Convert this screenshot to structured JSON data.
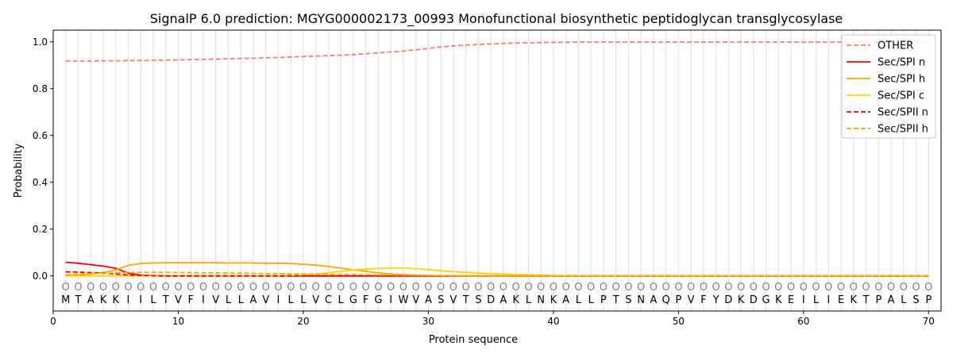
{
  "chart_data": {
    "type": "line",
    "title": "SignalP 6.0 prediction: MGYG000002173_00993 Monofunctional biosynthetic peptidoglycan transglycosylase",
    "xlabel": "Protein sequence",
    "ylabel": "Probability",
    "xlim": [
      0,
      71
    ],
    "ylim": [
      -0.15,
      1.05
    ],
    "xticks": [
      0,
      10,
      20,
      30,
      40,
      50,
      60,
      70
    ],
    "yticks": [
      0.0,
      0.2,
      0.4,
      0.6,
      0.8,
      1.0
    ],
    "ytick_labels": [
      "0.0",
      "0.2",
      "0.4",
      "0.6",
      "0.8",
      "1.0"
    ],
    "legend_position": "top-right",
    "sequence": [
      "M",
      "T",
      "A",
      "K",
      "K",
      "I",
      "I",
      "L",
      "T",
      "V",
      "F",
      "I",
      "V",
      "L",
      "L",
      "A",
      "V",
      "I",
      "L",
      "L",
      "V",
      "C",
      "L",
      "G",
      "F",
      "G",
      "I",
      "W",
      "V",
      "A",
      "S",
      "V",
      "T",
      "S",
      "D",
      "A",
      "K",
      "L",
      "N",
      "K",
      "A",
      "L",
      "L",
      "P",
      "T",
      "S",
      "N",
      "A",
      "Q",
      "P",
      "V",
      "F",
      "Y",
      "D",
      "K",
      "D",
      "G",
      "K",
      "E",
      "I",
      "L",
      "I",
      "E",
      "K",
      "T",
      "P",
      "A",
      "L",
      "S",
      "P"
    ],
    "region_labels": [
      "O",
      "O",
      "O",
      "O",
      "O",
      "O",
      "O",
      "O",
      "O",
      "O",
      "O",
      "O",
      "O",
      "O",
      "O",
      "O",
      "O",
      "O",
      "O",
      "O",
      "O",
      "O",
      "O",
      "O",
      "O",
      "O",
      "O",
      "O",
      "O",
      "O",
      "O",
      "O",
      "O",
      "O",
      "O",
      "O",
      "O",
      "O",
      "O",
      "O",
      "O",
      "O",
      "O",
      "O",
      "O",
      "O",
      "O",
      "O",
      "O",
      "O",
      "O",
      "O",
      "O",
      "O",
      "O",
      "O",
      "O",
      "O",
      "O",
      "O",
      "O",
      "O",
      "O",
      "O",
      "O",
      "O",
      "O",
      "O",
      "O",
      "O"
    ],
    "series": [
      {
        "name": "OTHER",
        "color": "#f08080",
        "dash": true,
        "values": [
          0.918,
          0.918,
          0.918,
          0.919,
          0.919,
          0.92,
          0.92,
          0.921,
          0.922,
          0.923,
          0.924,
          0.925,
          0.926,
          0.928,
          0.929,
          0.93,
          0.932,
          0.933,
          0.935,
          0.937,
          0.939,
          0.941,
          0.943,
          0.946,
          0.949,
          0.953,
          0.957,
          0.961,
          0.966,
          0.972,
          0.978,
          0.983,
          0.986,
          0.989,
          0.991,
          0.993,
          0.995,
          0.996,
          0.997,
          0.998,
          0.998,
          0.999,
          0.999,
          0.999,
          0.999,
          0.999,
          0.999,
          0.999,
          0.999,
          0.999,
          0.999,
          0.999,
          0.999,
          0.999,
          0.999,
          0.999,
          0.999,
          0.999,
          0.999,
          0.999,
          0.999,
          0.999,
          0.999,
          0.999,
          0.998,
          0.998,
          0.998,
          0.998,
          0.998,
          0.998
        ]
      },
      {
        "name": "Sec/SPI n",
        "color": "#ff0000",
        "dash": false,
        "values": [
          0.058,
          0.054,
          0.048,
          0.042,
          0.032,
          0.012,
          0.003,
          0.001,
          0,
          0,
          0,
          0,
          0,
          0,
          0,
          0,
          0,
          0,
          0,
          0,
          0,
          0,
          0,
          0,
          0,
          0,
          0,
          0,
          0,
          0,
          0,
          0,
          0,
          0,
          0,
          0,
          0,
          0,
          0,
          0,
          0,
          0,
          0,
          0,
          0,
          0,
          0,
          0,
          0,
          0,
          0,
          0,
          0,
          0,
          0,
          0,
          0,
          0,
          0,
          0,
          0,
          0,
          0,
          0,
          0,
          0,
          0,
          0,
          0,
          0
        ]
      },
      {
        "name": "Sec/SPI h",
        "color": "#ffa500",
        "dash": false,
        "values": [
          0.002,
          0.004,
          0.008,
          0.014,
          0.025,
          0.045,
          0.053,
          0.055,
          0.056,
          0.056,
          0.056,
          0.056,
          0.056,
          0.055,
          0.055,
          0.055,
          0.054,
          0.054,
          0.053,
          0.05,
          0.046,
          0.04,
          0.033,
          0.026,
          0.019,
          0.013,
          0.008,
          0.005,
          0.003,
          0.002,
          0.001,
          0,
          0,
          0,
          0,
          0,
          0,
          0,
          0,
          0,
          0,
          0,
          0,
          0,
          0,
          0,
          0,
          0,
          0,
          0,
          0,
          0,
          0,
          0,
          0,
          0,
          0,
          0,
          0,
          0,
          0,
          0,
          0,
          0,
          0,
          0,
          0,
          0,
          0,
          0
        ]
      },
      {
        "name": "Sec/SPI c",
        "color": "#ffd700",
        "dash": false,
        "values": [
          0,
          0,
          0,
          0,
          0,
          0,
          0,
          0,
          0,
          0,
          0,
          0,
          0,
          0,
          0,
          0,
          0,
          0,
          0.002,
          0.004,
          0.008,
          0.013,
          0.019,
          0.025,
          0.029,
          0.032,
          0.033,
          0.033,
          0.031,
          0.027,
          0.022,
          0.018,
          0.015,
          0.012,
          0.01,
          0.008,
          0.006,
          0.005,
          0.003,
          0.002,
          0.001,
          0.001,
          0.001,
          0,
          0,
          0,
          0,
          0,
          0,
          0,
          0,
          0,
          0,
          0,
          0,
          0,
          0,
          0,
          0,
          0,
          0,
          0,
          0,
          0,
          0,
          0,
          0,
          0,
          0,
          0
        ]
      },
      {
        "name": "Sec/SPII n",
        "color": "#ff0000",
        "dash": true,
        "values": [
          0.017,
          0.016,
          0.014,
          0.012,
          0.008,
          0.004,
          0.002,
          0.001,
          0,
          0,
          0,
          0,
          0,
          0,
          0,
          0,
          0,
          0,
          0,
          0,
          0,
          0,
          0,
          0,
          0,
          0,
          0,
          0,
          0,
          0,
          0,
          0,
          0,
          0,
          0,
          0,
          0,
          0,
          0,
          0,
          0,
          0,
          0,
          0,
          0,
          0,
          0,
          0,
          0,
          0,
          0,
          0,
          0,
          0,
          0,
          0,
          0,
          0,
          0,
          0,
          0,
          0,
          0,
          0,
          0,
          0,
          0,
          0,
          0,
          0
        ]
      },
      {
        "name": "Sec/SPII h",
        "color": "#ffa500",
        "dash": true,
        "values": [
          0.004,
          0.008,
          0.01,
          0.011,
          0.013,
          0.014,
          0.015,
          0.015,
          0.015,
          0.014,
          0.014,
          0.013,
          0.013,
          0.012,
          0.012,
          0.011,
          0.01,
          0.01,
          0.009,
          0.008,
          0.008,
          0.007,
          0.006,
          0.006,
          0.005,
          0.004,
          0.004,
          0.003,
          0.003,
          0.002,
          0.002,
          0.001,
          0,
          0,
          0,
          0,
          0,
          0,
          0,
          0,
          0,
          0,
          0,
          0,
          0,
          0,
          0,
          0,
          0,
          0,
          0,
          0,
          0,
          0,
          0,
          0,
          0,
          0,
          0,
          0,
          0,
          0,
          0,
          0,
          0,
          0,
          0,
          0,
          0,
          0
        ]
      }
    ]
  }
}
